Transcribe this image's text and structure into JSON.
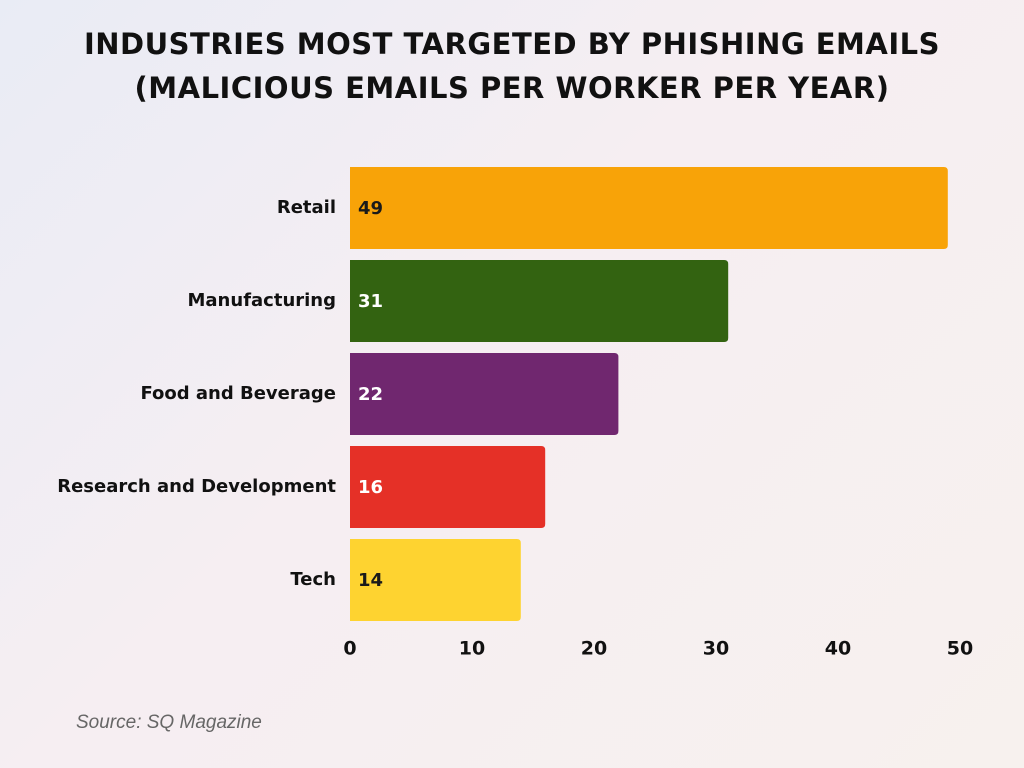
{
  "title_lines": [
    "INDUSTRIES MOST TARGETED BY PHISHING EMAILS",
    "(MALICIOUS EMAILS PER WORKER PER YEAR)"
  ],
  "chart_data": {
    "type": "bar",
    "orientation": "horizontal",
    "title": "INDUSTRIES MOST TARGETED BY PHISHING EMAILS (MALICIOUS EMAILS PER WORKER PER YEAR)",
    "categories": [
      "Retail",
      "Manufacturing",
      "Food and Beverage",
      "Research and Development",
      "Tech"
    ],
    "values": [
      49,
      31,
      22,
      16,
      14
    ],
    "colors": [
      "#f8a308",
      "#336311",
      "#70276f",
      "#e53027",
      "#fed330"
    ],
    "label_colors": [
      "#1a1a1a",
      "#ffffff",
      "#ffffff",
      "#ffffff",
      "#1a1a1a"
    ],
    "xlim": [
      0,
      50
    ],
    "xticks": [
      0,
      10,
      20,
      30,
      40,
      50
    ],
    "xlabel": "",
    "ylabel": "",
    "grid": false,
    "legend": "none"
  },
  "source": "Source: SQ Magazine"
}
